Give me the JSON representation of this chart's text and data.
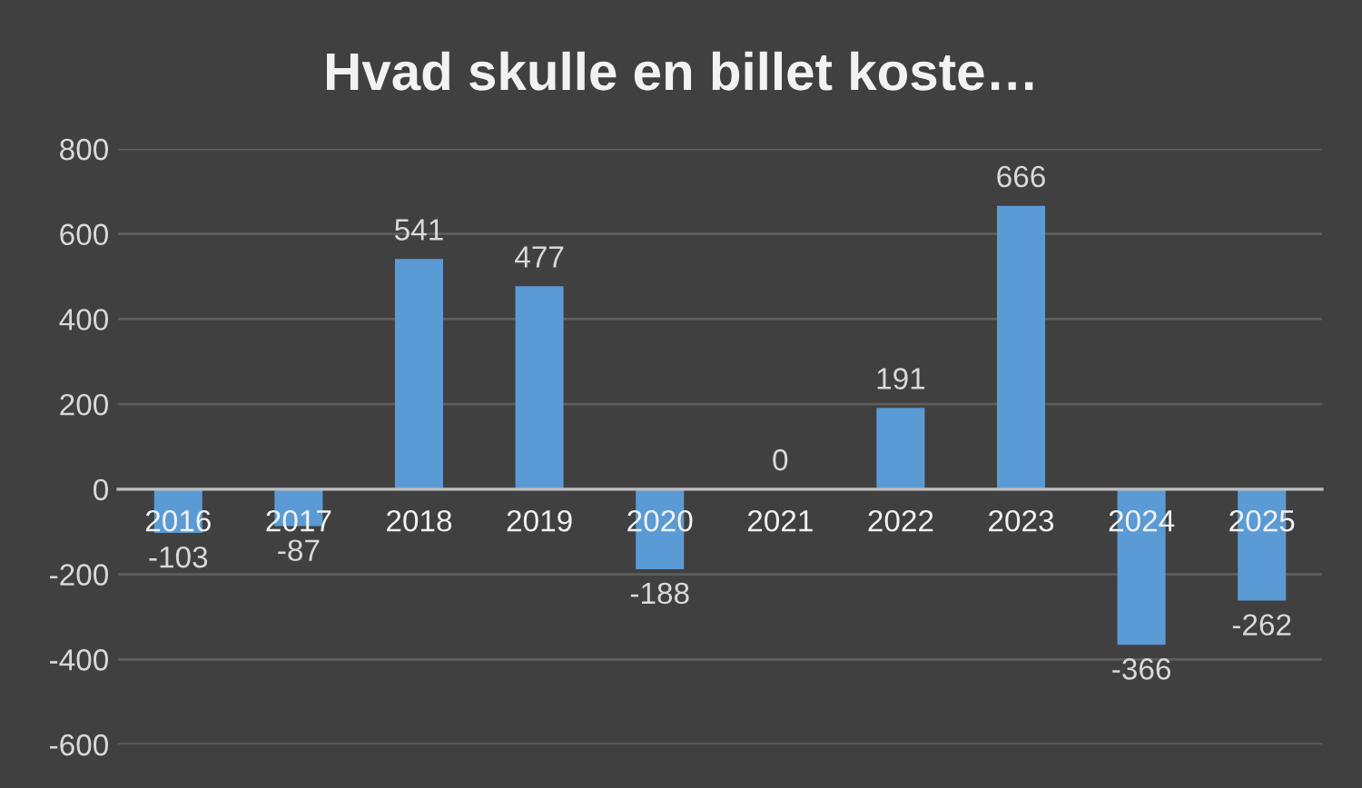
{
  "chart_data": {
    "type": "bar",
    "title": "Hvad skulle en billet koste…",
    "categories": [
      "2016",
      "2017",
      "2018",
      "2019",
      "2020",
      "2021",
      "2022",
      "2023",
      "2024",
      "2025"
    ],
    "values": [
      -103,
      -87,
      541,
      477,
      -188,
      0,
      191,
      666,
      -366,
      -262
    ],
    "color": "#5b9bd5",
    "ylim": [
      -600,
      800
    ],
    "yticks": [
      -600,
      -400,
      -200,
      0,
      200,
      400,
      600,
      800
    ],
    "grid": "y",
    "data_labels": true
  }
}
